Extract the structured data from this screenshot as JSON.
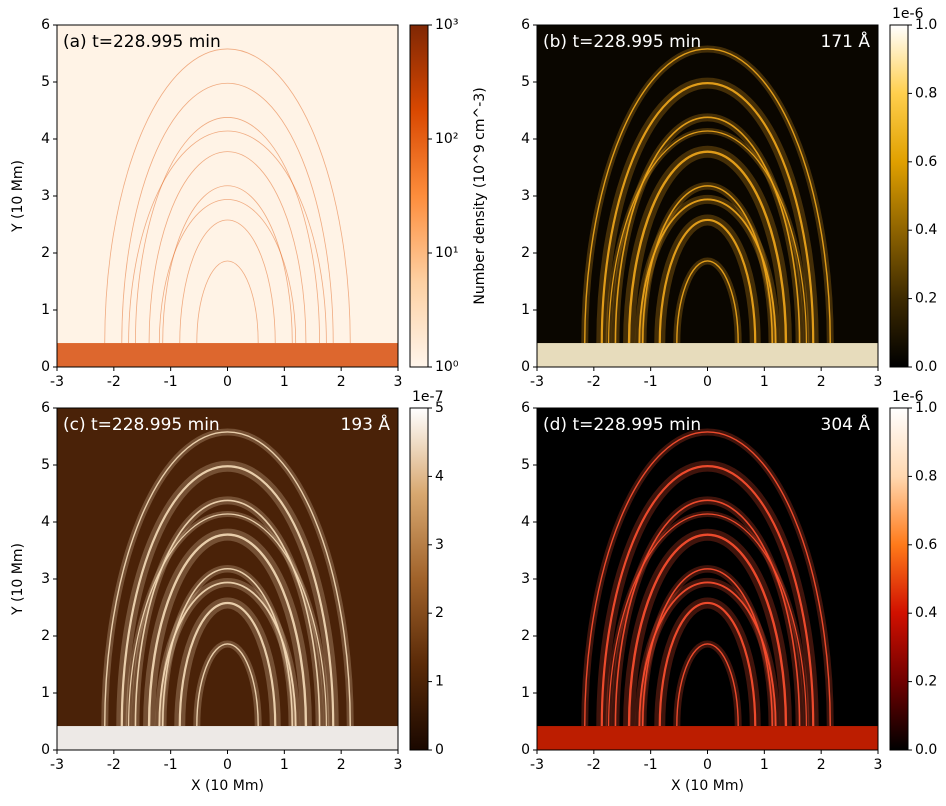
{
  "chart_data": [
    {
      "type": "heatmap",
      "title": "(a) t=228.995 min",
      "ylabel": "Y (10 Mm)",
      "xlim": [
        -3,
        3
      ],
      "ylim": [
        0,
        6
      ],
      "xticks": [
        -3,
        -2,
        -1,
        0,
        1,
        2,
        3
      ],
      "yticks": [
        0,
        1,
        2,
        3,
        4,
        5,
        6
      ],
      "background": "#fff3e6",
      "feature_color": "#e2641c",
      "base_color": "#d9581a",
      "colorbar": {
        "label": "Number density (10^9 cm^-3)",
        "log": true,
        "lim": [
          1,
          1000
        ],
        "ticks": [
          {
            "value": 1,
            "label": "10⁰"
          },
          {
            "value": 10,
            "label": "10¹"
          },
          {
            "value": 100,
            "label": "10²"
          },
          {
            "value": 1000,
            "label": "10³"
          }
        ],
        "colors": [
          "#fff5eb",
          "#fdd0a2",
          "#fd8d3c",
          "#d94801",
          "#7f2704"
        ]
      }
    },
    {
      "type": "heatmap",
      "title": "(b) t=228.995 min",
      "annotation": "171 Å",
      "xlim": [
        -3,
        3
      ],
      "ylim": [
        0,
        6
      ],
      "xticks": [
        -3,
        -2,
        -1,
        0,
        1,
        2,
        3
      ],
      "yticks": [
        0,
        1,
        2,
        3,
        4,
        5,
        6
      ],
      "background": "#0a0600",
      "feature_color": "#f2a91c",
      "base_color": "#fff4d0",
      "colorbar": {
        "offset": "1e-6",
        "log": false,
        "lim": [
          0,
          1
        ],
        "ticks": [
          {
            "value": 0,
            "label": "0.0"
          },
          0.2,
          0.4,
          0.6,
          0.8,
          {
            "value": 1,
            "label": "1.0"
          }
        ],
        "colors": [
          "#000000",
          "#3d2a00",
          "#8f6400",
          "#e0a000",
          "#ffcf4d",
          "#ffffff"
        ]
      }
    },
    {
      "type": "heatmap",
      "title": "(c) t=228.995 min",
      "annotation": "193 Å",
      "xlabel": "X (10 Mm)",
      "ylabel": "Y (10 Mm)",
      "xlim": [
        -3,
        3
      ],
      "ylim": [
        0,
        6
      ],
      "xticks": [
        -3,
        -2,
        -1,
        0,
        1,
        2,
        3
      ],
      "yticks": [
        0,
        1,
        2,
        3,
        4,
        5,
        6
      ],
      "background": "#4a2208",
      "feature_color": "#f6dcb8",
      "base_color": "#ffffff",
      "colorbar": {
        "offset": "1e-7",
        "log": false,
        "lim": [
          0,
          5
        ],
        "ticks": [
          0,
          1,
          2,
          3,
          4,
          5
        ],
        "colors": [
          "#1a0800",
          "#5a2a08",
          "#a0622a",
          "#d8a870",
          "#ffffff"
        ]
      }
    },
    {
      "type": "heatmap",
      "title": "(d) t=228.995 min",
      "annotation": "304 Å",
      "xlabel": "X (10 Mm)",
      "xlim": [
        -3,
        3
      ],
      "ylim": [
        0,
        6
      ],
      "xticks": [
        -3,
        -2,
        -1,
        0,
        1,
        2,
        3
      ],
      "yticks": [
        0,
        1,
        2,
        3,
        4,
        5,
        6
      ],
      "background": "#000000",
      "feature_color": "#ff5030",
      "base_color": "#d02000",
      "colorbar": {
        "offset": "1e-6",
        "log": false,
        "lim": [
          0,
          1
        ],
        "ticks": [
          {
            "value": 0,
            "label": "0.0"
          },
          0.2,
          0.4,
          0.6,
          0.8,
          {
            "value": 1,
            "label": "1.0"
          }
        ],
        "colors": [
          "#000000",
          "#700000",
          "#d01000",
          "#ff7a1a",
          "#ffd8b0",
          "#ffffff"
        ]
      }
    }
  ]
}
